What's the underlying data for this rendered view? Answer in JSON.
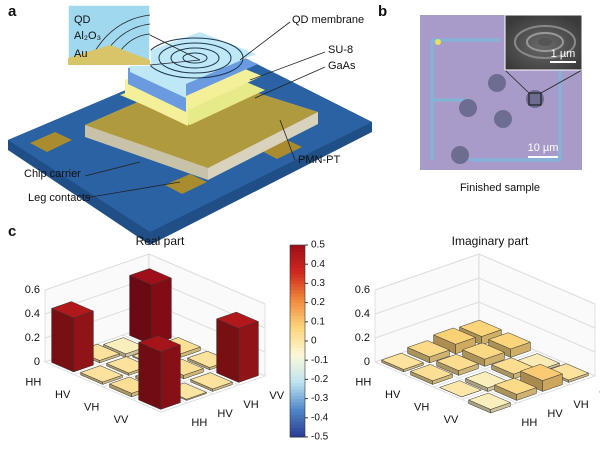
{
  "panel_a": {
    "label": "a",
    "inset_labels": [
      "QD",
      "Al₂O₃",
      "Au"
    ],
    "callouts": [
      "QD membrane",
      "SU-8",
      "GaAs",
      "PMN-PT",
      "Chip carrier",
      "Leg contacts"
    ]
  },
  "panel_b": {
    "label": "b",
    "scale_inset": "1 µm",
    "scale_main": "10 µm",
    "caption": "Finished sample"
  },
  "panel_c": {
    "label": "c"
  },
  "colorbar": {
    "lim": [
      -0.5,
      0.5
    ],
    "ticks": [
      0.5,
      0.4,
      0.3,
      0.2,
      0.1,
      0,
      -0.1,
      -0.2,
      -0.3,
      -0.4,
      -0.5
    ],
    "colormap": [
      "#2b3a92",
      "#4f86c6",
      "#bfe3f0",
      "#fbf8d8",
      "#fcd57a",
      "#f08a3c",
      "#d0281f",
      "#9e0f1a"
    ]
  },
  "chart_data": [
    {
      "type": "bar3d",
      "title": "Real part",
      "rows": [
        "HH",
        "HV",
        "VH",
        "VV"
      ],
      "cols": [
        "HH",
        "HV",
        "VH",
        "VV"
      ],
      "values": [
        [
          0.45,
          0.02,
          -0.03,
          0.5
        ],
        [
          0.02,
          0.02,
          0.01,
          0.03
        ],
        [
          0.03,
          0.02,
          0.03,
          0.02
        ],
        [
          0.48,
          0.01,
          0.02,
          0.45
        ]
      ],
      "zlim": [
        0,
        0.6
      ],
      "zticks": [
        0,
        0.2,
        0.4,
        0.6
      ]
    },
    {
      "type": "bar3d",
      "title": "Imaginary part",
      "rows": [
        "HH",
        "HV",
        "VH",
        "VV"
      ],
      "cols": [
        "HH",
        "HV",
        "VH",
        "VV"
      ],
      "values": [
        [
          0.02,
          0.05,
          0.08,
          0.07
        ],
        [
          0.03,
          0.04,
          0.06,
          0.07
        ],
        [
          0.0,
          -0.03,
          0.04,
          -0.02
        ],
        [
          -0.03,
          0.05,
          0.09,
          0.02
        ]
      ],
      "zlim": [
        0,
        0.6
      ],
      "zticks": [
        0,
        0.2,
        0.4,
        0.6
      ]
    }
  ]
}
